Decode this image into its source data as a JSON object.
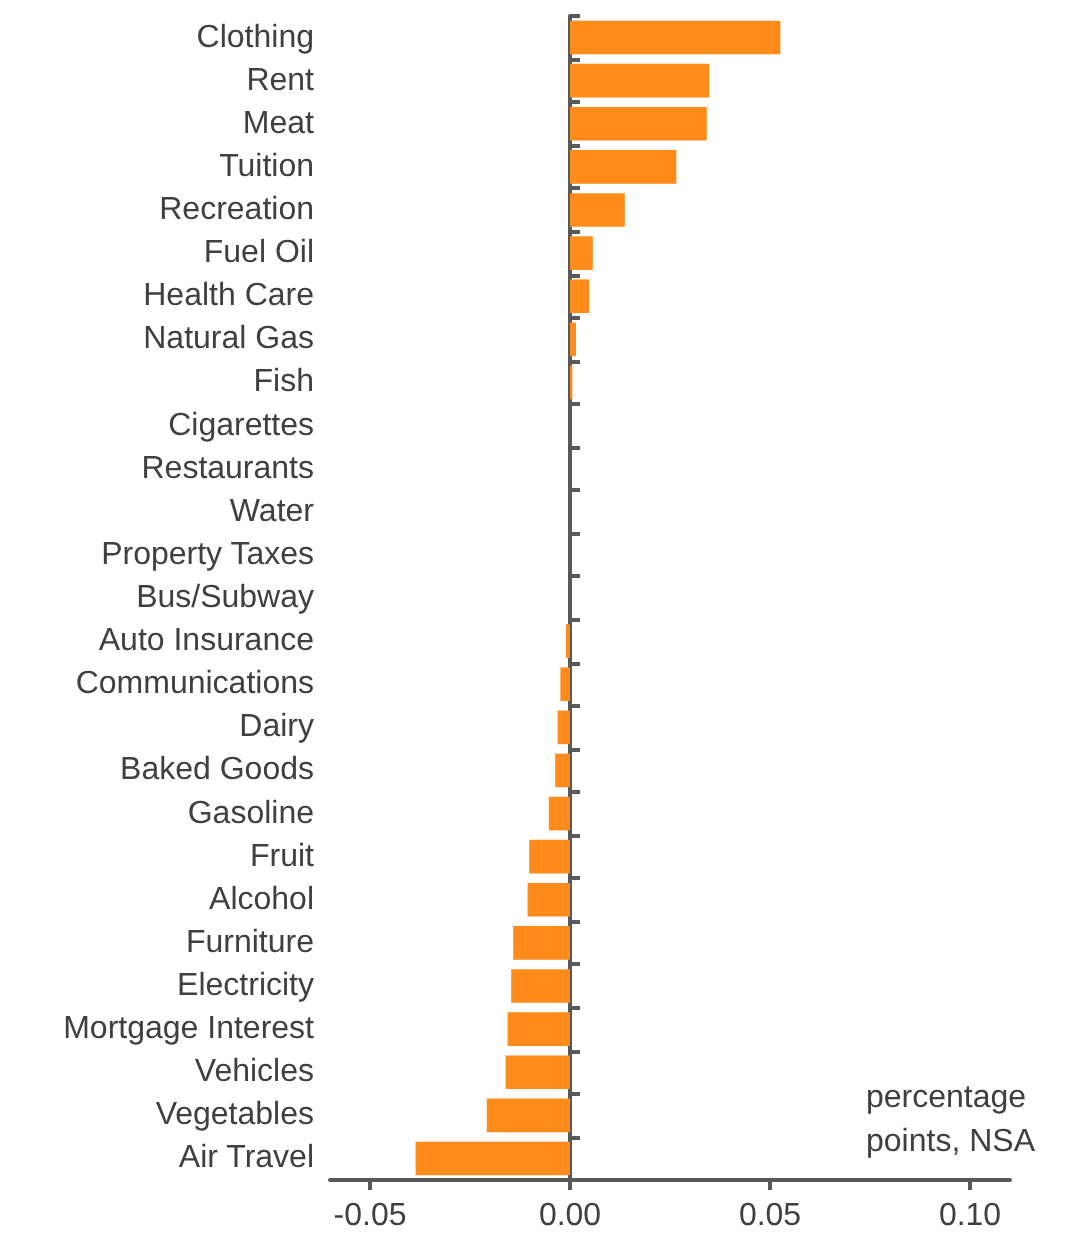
{
  "chart_data": {
    "type": "bar",
    "orientation": "horizontal",
    "xlabel": "percentage points, NSA",
    "categories": [
      "Clothing",
      "Rent",
      "Meat",
      "Tuition",
      "Recreation",
      "Fuel Oil",
      "Health Care",
      "Natural Gas",
      "Fish",
      "Cigarettes",
      "Restaurants",
      "Water",
      "Property Taxes",
      "Bus/Subway",
      "Auto Insurance",
      "Communications",
      "Dairy",
      "Baked Goods",
      "Gasoline",
      "Fruit",
      "Alcohol",
      "Furniture",
      "Electricity",
      "Mortgage Interest",
      "Vehicles",
      "Vegetables",
      "Air Travel"
    ],
    "values": [
      0.0526,
      0.0348,
      0.0342,
      0.0266,
      0.0137,
      0.0057,
      0.0048,
      0.0015,
      0.0006,
      0,
      0,
      0,
      0,
      0,
      -0.001,
      -0.0024,
      -0.0031,
      -0.0037,
      -0.0053,
      -0.0102,
      -0.0106,
      -0.0142,
      -0.0147,
      -0.0156,
      -0.0161,
      -0.0208,
      -0.0386
    ],
    "color": "#ff8c1a",
    "xlim": [
      -0.06,
      0.11
    ],
    "xticks": [
      {
        "value": -0.05,
        "label": "-0.05"
      },
      {
        "value": 0,
        "label": "0.00"
      },
      {
        "value": 0.05,
        "label": "0.05"
      },
      {
        "value": 0.1,
        "label": "0.10"
      }
    ]
  }
}
